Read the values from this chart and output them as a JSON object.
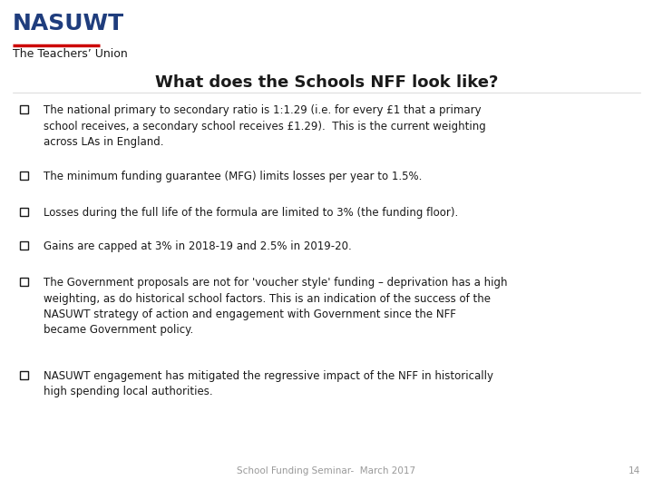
{
  "title": "What does the Schools NFF look like?",
  "title_color": "#1a1a1a",
  "title_fontsize": 13,
  "logo_text_nasuwt": "NASUWT",
  "logo_text_sub": "The Teachers’ Union",
  "logo_color": "#1f3d7d",
  "logo_fontsize": 18,
  "logo_sub_fontsize": 9,
  "bullet_points": [
    "The national primary to secondary ratio is 1:1.29 (i.e. for every £1 that a primary\nschool receives, a secondary school receives £1.29).  This is the current weighting\nacross LAs in England.",
    "The minimum funding guarantee (MFG) limits losses per year to 1.5%.",
    "Losses during the full life of the formula are limited to 3% (the funding floor).",
    "Gains are capped at 3% in 2018-19 and 2.5% in 2019-20.",
    "The Government proposals are not for 'voucher style' funding – deprivation has a high\nweighting, as do historical school factors. This is an indication of the success of the\nNASUWT strategy of action and engagement with Government since the NFF\nbecame Government policy.",
    "NASUWT engagement has mitigated the regressive impact of the NFF in historically\nhigh spending local authorities."
  ],
  "bullet_fontsize": 8.5,
  "bullet_color": "#1a1a1a",
  "footer_text": "School Funding Seminar-  March 2017",
  "footer_page": "14",
  "footer_fontsize": 7.5,
  "footer_color": "#999999",
  "bg_color": "#ffffff"
}
